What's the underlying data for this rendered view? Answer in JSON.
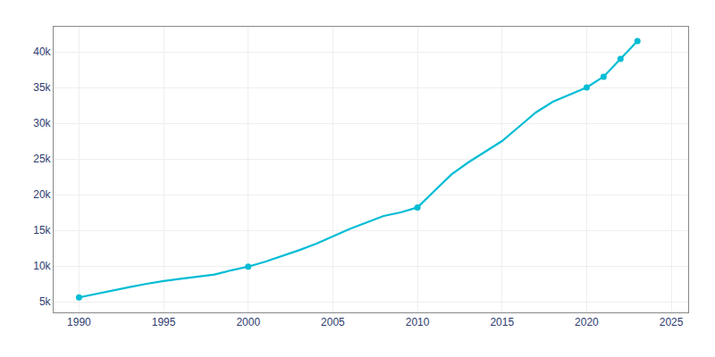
{
  "chart_data": {
    "type": "line",
    "x": [
      1990,
      1991,
      1992,
      1993,
      1994,
      1995,
      1996,
      1997,
      1998,
      1999,
      2000,
      2001,
      2002,
      2003,
      2004,
      2005,
      2006,
      2007,
      2008,
      2009,
      2010,
      2011,
      2012,
      2013,
      2014,
      2015,
      2016,
      2017,
      2018,
      2019,
      2020,
      2021,
      2022,
      2023
    ],
    "series": [
      {
        "color": "#00BCD4",
        "values": [
          5593,
          6100,
          6600,
          7050,
          7500,
          7900,
          8200,
          8500,
          8800,
          9400,
          9900,
          10600,
          11400,
          12200,
          13100,
          14200,
          15200,
          16100,
          17000,
          17500,
          18200,
          20500,
          22800,
          24500,
          26000,
          27500,
          29500,
          31500,
          33000,
          34000,
          35000,
          36500,
          39000,
          41500
        ]
      },
      {
        "type": "scatter",
        "marker": "circle",
        "color": "#00BCD4",
        "values": [
          5593,
          null,
          null,
          null,
          null,
          null,
          null,
          null,
          null,
          null,
          9900,
          null,
          null,
          null,
          null,
          null,
          null,
          null,
          null,
          null,
          18200,
          null,
          null,
          null,
          null,
          null,
          null,
          null,
          null,
          null,
          35000,
          36500,
          39000,
          41500
        ]
      }
    ],
    "xlim": [
      1988.5,
      2026
    ],
    "xticks": [
      1990,
      1995,
      2000,
      2005,
      2010,
      2015,
      2020,
      2025
    ],
    "ylim": [
      3500,
      43500
    ],
    "yticks": [
      {
        "value": 5000,
        "label": "5k"
      },
      {
        "value": 10000,
        "label": "10k"
      },
      {
        "value": 15000,
        "label": "15k"
      },
      {
        "value": 20000,
        "label": "20k"
      },
      {
        "value": 25000,
        "label": "25k"
      },
      {
        "value": 30000,
        "label": "30k"
      },
      {
        "value": 35000,
        "label": "35k"
      },
      {
        "value": 40000,
        "label": "40k"
      }
    ],
    "grid": true
  }
}
